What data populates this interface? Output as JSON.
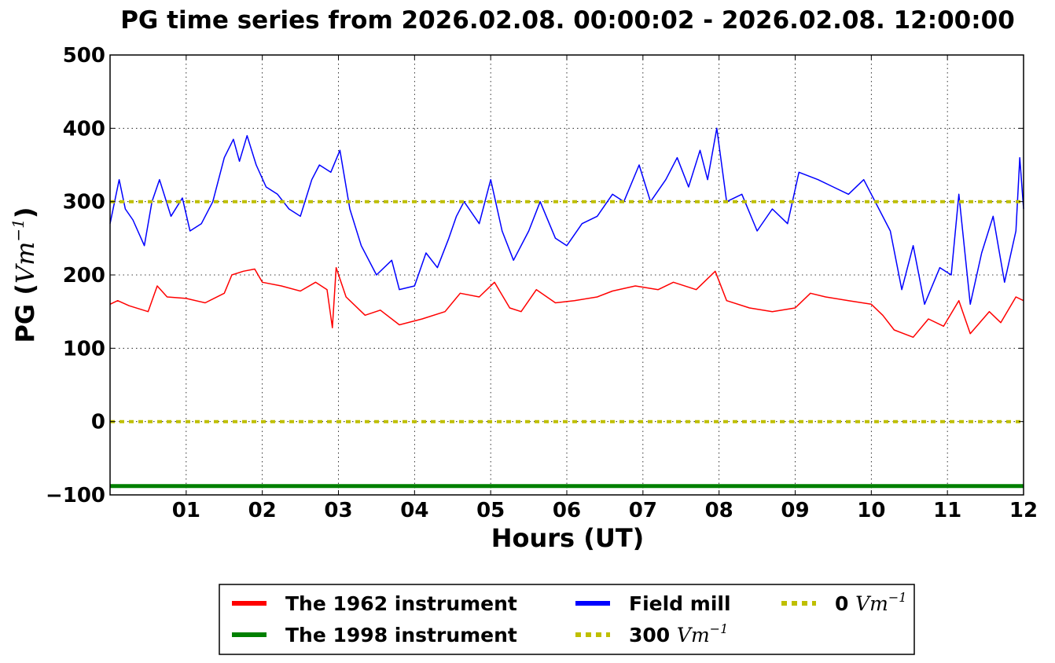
{
  "chart_data": {
    "type": "line",
    "title": "PG time series from 2026.02.08. 00:00:02 - 2026.02.08. 12:00:00",
    "xlabel": "Hours (UT)",
    "ylabel_prefix": "PG (",
    "ylabel_unit": "Vm",
    "ylabel_exp": "−1",
    "ylabel_suffix": ")",
    "xlim": [
      0,
      12
    ],
    "ylim": [
      -100,
      500
    ],
    "x_ticks": [
      {
        "value": 1,
        "label": "01"
      },
      {
        "value": 2,
        "label": "02"
      },
      {
        "value": 3,
        "label": "03"
      },
      {
        "value": 4,
        "label": "04"
      },
      {
        "value": 5,
        "label": "05"
      },
      {
        "value": 6,
        "label": "06"
      },
      {
        "value": 7,
        "label": "07"
      },
      {
        "value": 8,
        "label": "08"
      },
      {
        "value": 9,
        "label": "09"
      },
      {
        "value": 10,
        "label": "10"
      },
      {
        "value": 11,
        "label": "11"
      },
      {
        "value": 12,
        "label": "12"
      }
    ],
    "y_ticks": [
      {
        "value": -100,
        "label": "−100"
      },
      {
        "value": 0,
        "label": "0"
      },
      {
        "value": 100,
        "label": "100"
      },
      {
        "value": 200,
        "label": "200"
      },
      {
        "value": 300,
        "label": "300"
      },
      {
        "value": 400,
        "label": "400"
      },
      {
        "value": 500,
        "label": "500"
      }
    ],
    "grid": true,
    "legend_position": "below",
    "series": [
      {
        "name": "The 1962 instrument",
        "color": "#ff0000",
        "x": [
          0,
          0.1,
          0.25,
          0.5,
          0.62,
          0.75,
          1.0,
          1.25,
          1.5,
          1.6,
          1.75,
          1.9,
          2.0,
          2.25,
          2.5,
          2.7,
          2.85,
          2.92,
          2.97,
          3.1,
          3.35,
          3.55,
          3.8,
          4.1,
          4.4,
          4.6,
          4.85,
          5.05,
          5.25,
          5.4,
          5.6,
          5.85,
          6.1,
          6.4,
          6.6,
          6.9,
          7.2,
          7.4,
          7.7,
          7.95,
          8.1,
          8.4,
          8.7,
          9.0,
          9.2,
          9.4,
          9.7,
          10.0,
          10.15,
          10.3,
          10.55,
          10.75,
          10.95,
          11.15,
          11.3,
          11.55,
          11.7,
          11.9,
          12.0
        ],
        "y": [
          160,
          165,
          158,
          150,
          185,
          170,
          168,
          162,
          175,
          200,
          205,
          208,
          190,
          185,
          178,
          190,
          180,
          128,
          210,
          170,
          145,
          152,
          132,
          140,
          150,
          175,
          170,
          190,
          155,
          150,
          180,
          162,
          165,
          170,
          178,
          185,
          180,
          190,
          180,
          205,
          165,
          155,
          150,
          155,
          175,
          170,
          165,
          160,
          145,
          125,
          115,
          140,
          130,
          165,
          120,
          150,
          135,
          170,
          165
        ]
      },
      {
        "name": "The 1998 instrument",
        "color": "#008000",
        "x": [
          0,
          12
        ],
        "y": [
          -88,
          -88
        ]
      },
      {
        "name": "Field mill",
        "color": "#0000ff",
        "x": [
          0,
          0.12,
          0.2,
          0.3,
          0.45,
          0.55,
          0.65,
          0.8,
          0.95,
          1.05,
          1.2,
          1.35,
          1.5,
          1.62,
          1.7,
          1.8,
          1.92,
          2.05,
          2.2,
          2.35,
          2.5,
          2.65,
          2.75,
          2.9,
          3.02,
          3.15,
          3.3,
          3.5,
          3.7,
          3.8,
          4.0,
          4.15,
          4.3,
          4.45,
          4.55,
          4.65,
          4.85,
          5.0,
          5.15,
          5.3,
          5.5,
          5.65,
          5.85,
          6.0,
          6.2,
          6.4,
          6.6,
          6.75,
          6.95,
          7.1,
          7.3,
          7.45,
          7.6,
          7.75,
          7.85,
          7.97,
          8.1,
          8.3,
          8.5,
          8.7,
          8.9,
          9.05,
          9.3,
          9.5,
          9.7,
          9.9,
          10.05,
          10.25,
          10.4,
          10.55,
          10.7,
          10.9,
          11.05,
          11.15,
          11.3,
          11.45,
          11.6,
          11.75,
          11.9,
          11.95,
          12.0
        ],
        "y": [
          270,
          330,
          290,
          275,
          240,
          300,
          330,
          280,
          305,
          260,
          270,
          300,
          360,
          385,
          355,
          390,
          350,
          320,
          310,
          290,
          280,
          330,
          350,
          340,
          370,
          290,
          240,
          200,
          220,
          180,
          185,
          230,
          210,
          250,
          280,
          300,
          270,
          330,
          260,
          220,
          260,
          300,
          250,
          240,
          270,
          280,
          310,
          300,
          350,
          300,
          330,
          360,
          320,
          370,
          330,
          400,
          300,
          310,
          260,
          290,
          270,
          340,
          330,
          320,
          310,
          330,
          300,
          260,
          180,
          240,
          160,
          210,
          200,
          310,
          160,
          230,
          280,
          190,
          260,
          360,
          290
        ]
      },
      {
        "name": "300",
        "color": "#bfbf00",
        "dashed": true,
        "x": [
          0,
          12
        ],
        "y": [
          300,
          300
        ]
      },
      {
        "name": "0",
        "color": "#bfbf00",
        "dashed": true,
        "x": [
          0,
          12
        ],
        "y": [
          0,
          0
        ]
      }
    ],
    "legend": [
      {
        "label": "The 1962 instrument",
        "unit": "",
        "color": "#ff0000",
        "dashed": false
      },
      {
        "label": "The 1998 instrument",
        "unit": "",
        "color": "#008000",
        "dashed": false
      },
      {
        "label": "Field mill",
        "unit": "",
        "color": "#0000ff",
        "dashed": false
      },
      {
        "label": "300 ",
        "unit": "Vm",
        "exp": "−1",
        "color": "#bfbf00",
        "dashed": true
      },
      {
        "label": "0 ",
        "unit": "Vm",
        "exp": "−1",
        "color": "#bfbf00",
        "dashed": true
      }
    ]
  }
}
